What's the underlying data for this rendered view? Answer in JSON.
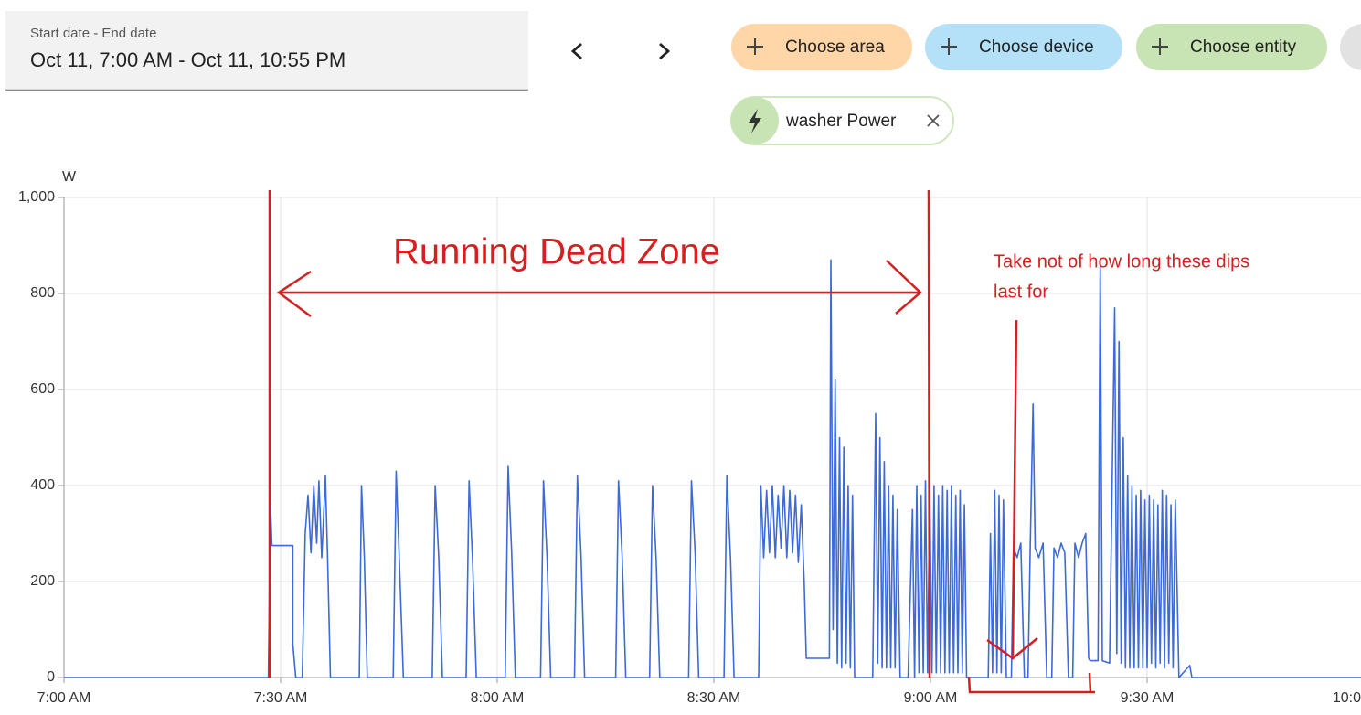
{
  "ui": {
    "date_label": "Start date - End date",
    "date_range": "Oct 11, 7:00 AM - Oct 11, 10:55 PM",
    "chips": [
      "Choose area",
      "Choose device",
      "Choose entity"
    ],
    "selected": "washer Power"
  },
  "chart_data": {
    "type": "line",
    "y_label": "W",
    "color": "#3d6ad6",
    "grid": true,
    "annotations": [
      "Running Dead Zone",
      "Take not of how long these dips",
      "last for"
    ],
    "xlim": [
      420,
      600
    ],
    "xticks": [
      {
        "value": 420,
        "label": "7:00 AM"
      },
      {
        "value": 450,
        "label": "7:30 AM"
      },
      {
        "value": 480,
        "label": "8:00 AM"
      },
      {
        "value": 510,
        "label": "8:30 AM"
      },
      {
        "value": 540,
        "label": "9:00 AM"
      },
      {
        "value": 570,
        "label": "9:30 AM"
      },
      {
        "value": 600,
        "label": "10:0"
      }
    ],
    "ylim": [
      0,
      1000
    ],
    "yticks": [
      0,
      200,
      400,
      600,
      800,
      {
        "value": 1000,
        "label": "1,000"
      }
    ],
    "x": [
      420,
      448.3,
      448.6,
      448.8,
      451.7,
      451.7,
      452.1,
      453.0,
      453.4,
      453.8,
      454.2,
      454.6,
      455.0,
      455.3,
      455.7,
      456.2,
      456.5,
      456.9,
      460.9,
      461.2,
      461.6,
      462.0,
      465.6,
      466.0,
      466.4,
      467.0,
      471.0,
      471.4,
      471.9,
      472.4,
      475.7,
      476.1,
      476.6,
      477.1,
      481.1,
      481.5,
      482.0,
      482.5,
      486.0,
      486.4,
      486.9,
      487.4,
      490.7,
      491.1,
      491.6,
      492.1,
      496.4,
      496.8,
      497.3,
      497.8,
      501.1,
      501.5,
      502.0,
      502.5,
      506.5,
      506.9,
      507.4,
      507.9,
      511.4,
      511.8,
      512.3,
      512.8,
      516.2,
      516.5,
      516.9,
      517.3,
      517.7,
      518.1,
      518.5,
      518.9,
      519.3,
      519.7,
      520.1,
      520.5,
      520.9,
      521.3,
      521.7,
      522.1,
      522.5,
      522.8,
      526.0,
      526.2,
      526.5,
      526.8,
      527.1,
      527.4,
      527.7,
      528.0,
      528.3,
      528.6,
      528.9,
      529.2,
      529.5,
      532.0,
      532.4,
      532.7,
      533.0,
      533.3,
      533.6,
      533.9,
      534.2,
      534.5,
      534.8,
      535.1,
      535.4,
      535.8,
      536.9,
      537.5,
      537.8,
      538.1,
      538.4,
      538.7,
      539.0,
      539.3,
      539.6,
      539.9,
      540.2,
      540.5,
      540.8,
      541.1,
      541.4,
      541.7,
      542.0,
      542.3,
      542.6,
      542.9,
      543.2,
      543.5,
      543.8,
      544.1,
      544.4,
      544.7,
      545.0,
      548.0,
      548.3,
      548.6,
      548.9,
      549.2,
      549.5,
      549.8,
      550.1,
      550.5,
      551.2,
      551.5,
      552.0,
      552.5,
      553.0,
      553.5,
      553.8,
      554.2,
      554.5,
      555.0,
      555.6,
      556.1,
      556.8,
      557.1,
      557.6,
      558.1,
      558.6,
      559.1,
      559.7,
      560.0,
      560.5,
      561.0,
      561.5,
      561.9,
      562.1,
      563.2,
      563.5,
      563.8,
      564.8,
      565.5,
      565.8,
      566.1,
      566.4,
      566.7,
      567.0,
      567.3,
      567.6,
      567.9,
      568.2,
      568.5,
      568.8,
      569.1,
      569.4,
      569.7,
      570.0,
      570.3,
      570.6,
      570.9,
      571.2,
      571.5,
      571.8,
      572.1,
      572.4,
      572.7,
      573.0,
      573.3,
      573.6,
      573.9,
      574.4,
      575.9,
      576.2,
      600
    ],
    "values": [
      0,
      0,
      360,
      275,
      275,
      70,
      0,
      0,
      300,
      380,
      260,
      400,
      280,
      410,
      250,
      420,
      250,
      0,
      0,
      400,
      250,
      0,
      0,
      430,
      260,
      0,
      0,
      400,
      250,
      0,
      0,
      410,
      240,
      0,
      0,
      440,
      260,
      0,
      0,
      410,
      250,
      0,
      0,
      420,
      260,
      0,
      0,
      410,
      250,
      0,
      0,
      400,
      250,
      0,
      0,
      410,
      260,
      0,
      0,
      420,
      250,
      0,
      0,
      400,
      250,
      390,
      260,
      400,
      250,
      380,
      270,
      400,
      250,
      390,
      260,
      380,
      240,
      360,
      200,
      40,
      40,
      870,
      100,
      620,
      30,
      500,
      20,
      480,
      30,
      400,
      20,
      380,
      0,
      0,
      550,
      30,
      500,
      20,
      450,
      20,
      400,
      20,
      380,
      20,
      350,
      0,
      0,
      350,
      0,
      400,
      10,
      380,
      10,
      410,
      10,
      390,
      10,
      400,
      10,
      380,
      10,
      400,
      10,
      390,
      10,
      400,
      10,
      380,
      10,
      390,
      10,
      360,
      0,
      0,
      300,
      10,
      390,
      10,
      380,
      10,
      370,
      0,
      0,
      270,
      250,
      280,
      0,
      0,
      260,
      570,
      270,
      250,
      280,
      0,
      0,
      270,
      250,
      280,
      260,
      0,
      0,
      280,
      250,
      280,
      300,
      40,
      35,
      35,
      870,
      35,
      30,
      770,
      50,
      700,
      30,
      500,
      20,
      420,
      20,
      400,
      20,
      380,
      20,
      390,
      20,
      370,
      20,
      380,
      30,
      370,
      20,
      360,
      30,
      390,
      20,
      380,
      30,
      360,
      20,
      370,
      0,
      25,
      0,
      0
    ]
  }
}
